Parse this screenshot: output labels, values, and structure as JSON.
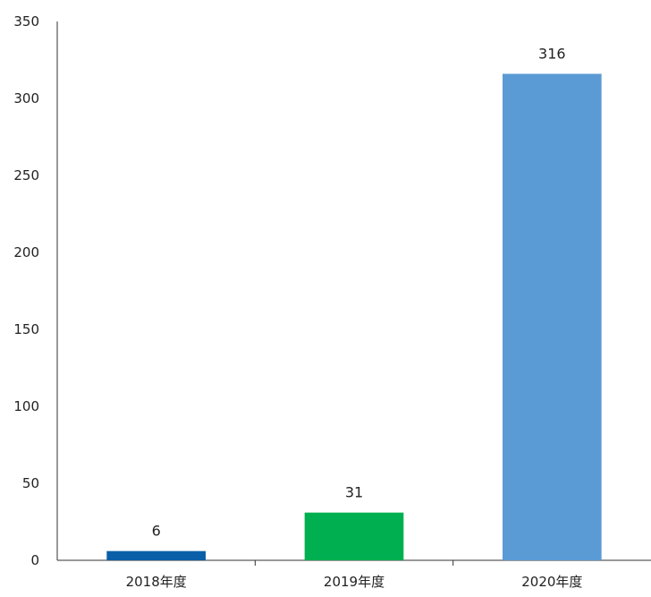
{
  "chart_data": {
    "type": "bar",
    "title": "",
    "xlabel": "",
    "ylabel": "",
    "categories": [
      "2018年度",
      "2019年度",
      "2020年度"
    ],
    "values": [
      6,
      31,
      316
    ],
    "data_labels": [
      "6",
      "31",
      "316"
    ],
    "bar_colors": [
      "#0a5fa8",
      "#00b050",
      "#5b9bd5"
    ],
    "ylim": [
      0,
      350
    ],
    "y_ticks": [
      0,
      50,
      100,
      150,
      200,
      250,
      300,
      350
    ],
    "grid": false,
    "legend": "none"
  }
}
